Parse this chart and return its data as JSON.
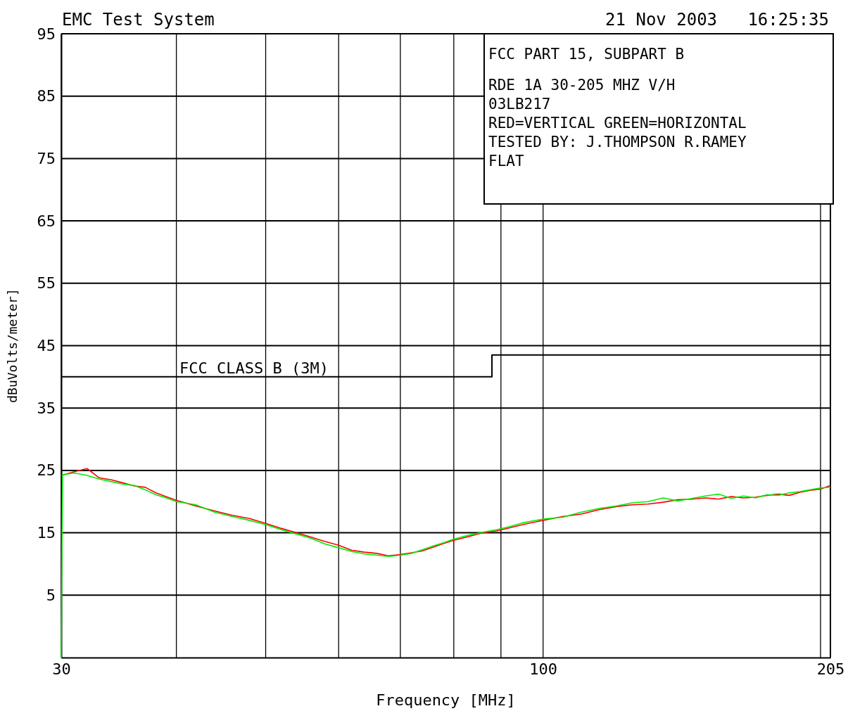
{
  "chart_data": {
    "type": "line",
    "title": "EMC Test System",
    "subtitle": "21 Nov 2003   16:25:35",
    "xlabel": "Frequency [MHz]",
    "ylabel": "dBuVolts/meter]",
    "annotations": [
      "FCC PART 15, SUBPART B",
      "RDE 1A 30-205 MHZ V/H",
      "03LB217",
      "RED=VERTICAL GREEN=HORIZONTAL",
      "TESTED BY: J.THOMPSON R.RAMEY",
      "FLAT"
    ],
    "log": "x",
    "xlim": [
      30,
      205
    ],
    "ylim": [
      -5,
      95
    ],
    "xticks": [
      30,
      {
        "value": 40,
        "label": null
      },
      {
        "value": 50,
        "label": null
      },
      {
        "value": 60,
        "label": null
      },
      {
        "value": 70,
        "label": null
      },
      {
        "value": 80,
        "label": null
      },
      {
        "value": 90,
        "label": null
      },
      100,
      {
        "value": 200,
        "label": null
      },
      205
    ],
    "yticks": [
      5,
      15,
      25,
      35,
      45,
      55,
      65,
      75,
      85,
      95
    ],
    "grid": true,
    "series": [
      {
        "name": "FCC CLASS B (3M)",
        "type": "step",
        "color": "#000000",
        "x": [
          30,
          88,
          205
        ],
        "values": [
          40,
          43.5,
          43.5
        ]
      },
      {
        "color": "#ff0000",
        "x": [
          30,
          31,
          32,
          33,
          34,
          35,
          36,
          37,
          38,
          39,
          40,
          42,
          44,
          46,
          48,
          50,
          52,
          54,
          56,
          58,
          60,
          62,
          64,
          66,
          68,
          70,
          72,
          74,
          76,
          78,
          80,
          83,
          86,
          89,
          92,
          95,
          100,
          105,
          110,
          115,
          120,
          125,
          130,
          135,
          140,
          145,
          150,
          155,
          160,
          165,
          170,
          175,
          180,
          185,
          190,
          195,
          200,
          205
        ],
        "values": [
          24.2,
          24.8,
          25.3,
          23.8,
          23.5,
          23.0,
          22.5,
          22.3,
          21.4,
          20.8,
          20.2,
          19.3,
          18.5,
          17.8,
          17.3,
          16.5,
          15.7,
          15.0,
          14.3,
          13.6,
          13.0,
          12.2,
          11.9,
          11.7,
          11.3,
          11.5,
          11.8,
          12.1,
          12.7,
          13.3,
          13.8,
          14.4,
          15.0,
          15.3,
          15.8,
          16.3,
          17.0,
          17.6,
          18.0,
          18.7,
          19.2,
          19.5,
          19.6,
          19.9,
          20.3,
          20.4,
          20.6,
          20.4,
          20.8,
          20.6,
          20.7,
          21.0,
          21.2,
          21.0,
          21.5,
          21.8,
          22.0,
          22.6
        ]
      },
      {
        "color": "#00ee00",
        "x": [
          30,
          30.1,
          31,
          32,
          33,
          34,
          35,
          36,
          37,
          38,
          39,
          40,
          42,
          44,
          46,
          48,
          50,
          52,
          54,
          56,
          58,
          60,
          62,
          64,
          66,
          68,
          70,
          72,
          74,
          76,
          78,
          80,
          83,
          86,
          89,
          92,
          95,
          100,
          105,
          110,
          115,
          120,
          125,
          130,
          135,
          140,
          145,
          150,
          155,
          160,
          165,
          170,
          175,
          180,
          185,
          190,
          195,
          200,
          205
        ],
        "values": [
          -5,
          24.3,
          24.6,
          24.2,
          23.6,
          23.2,
          22.8,
          22.6,
          21.9,
          21.1,
          20.6,
          20.0,
          19.5,
          18.3,
          17.6,
          17.0,
          16.3,
          15.5,
          14.8,
          14.1,
          13.2,
          12.6,
          12.0,
          11.6,
          11.4,
          11.2,
          11.4,
          11.7,
          12.3,
          12.9,
          13.4,
          14.0,
          14.6,
          15.1,
          15.5,
          16.0,
          16.6,
          17.2,
          17.5,
          18.3,
          18.9,
          19.3,
          19.8,
          20.0,
          20.6,
          20.1,
          20.5,
          20.9,
          21.2,
          20.5,
          20.9,
          20.6,
          21.1,
          21.0,
          21.4,
          21.6,
          21.9,
          22.2,
          22.3
        ]
      }
    ]
  }
}
